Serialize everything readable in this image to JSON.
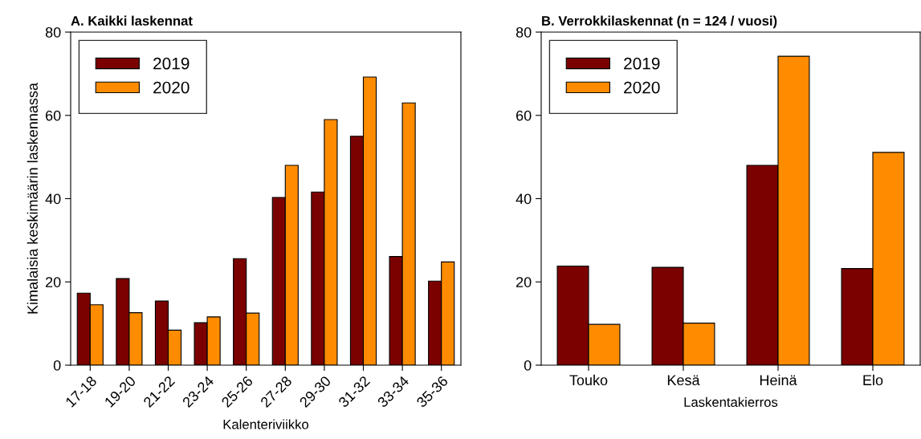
{
  "chart_data": [
    {
      "type": "bar",
      "title": "A. Kaikki laskennat",
      "xlabel": "Kalenteriviikko",
      "ylabel": "Kimalaisia keskimäärin laskennassa",
      "categories": [
        "17-18",
        "19-20",
        "21-22",
        "23-24",
        "25-26",
        "27-28",
        "29-30",
        "31-32",
        "33-34",
        "35-36"
      ],
      "series": [
        {
          "name": "2019",
          "color": "#7b0000",
          "values": [
            17.3,
            20.8,
            15.4,
            10.2,
            25.6,
            40.3,
            41.6,
            55.0,
            26.1,
            20.2
          ]
        },
        {
          "name": "2020",
          "color": "#ff8c00",
          "values": [
            14.5,
            12.6,
            8.4,
            11.6,
            12.5,
            48.0,
            59.0,
            69.2,
            63.0,
            24.8
          ]
        }
      ],
      "ylim": [
        0,
        80
      ],
      "yticks": [
        0,
        20,
        40,
        60,
        80
      ],
      "legend": "top left",
      "grid": false
    },
    {
      "type": "bar",
      "title": "B. Verrokkilaskennat (n = 124 / vuosi)",
      "xlabel": "Laskentakierros",
      "categories": [
        "Touko",
        "Kesä",
        "Heinä",
        "Elo"
      ],
      "series": [
        {
          "name": "2019",
          "color": "#7b0000",
          "values": [
            23.8,
            23.5,
            48.0,
            23.2
          ]
        },
        {
          "name": "2020",
          "color": "#ff8c00",
          "values": [
            9.8,
            10.1,
            74.2,
            51.1
          ]
        }
      ],
      "ylim": [
        0,
        80
      ],
      "yticks": [
        0,
        20,
        40,
        60,
        80
      ],
      "legend": "top left",
      "grid": false
    }
  ]
}
